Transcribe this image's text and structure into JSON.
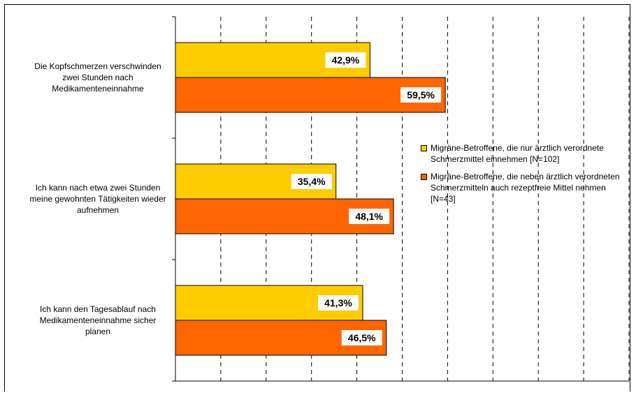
{
  "chart_data": {
    "type": "bar",
    "orientation": "horizontal",
    "categories": [
      "Die Kopfschmerzen verschwinden zwei Stunden nach Medikamenteneinnahme",
      "Ich kann nach etwa zwei Stunden meine gewohnten Tätigkeiten wieder aufnehmen",
      "Ich kann den Tagesablauf nach Medikamenteneinnahme sicher planen"
    ],
    "series": [
      {
        "name": "Migräne-Betroffene, die nur ärztlich verordnete Schmerzmittel einnehmen [N=102]",
        "values": [
          42.9,
          35.4,
          41.3
        ],
        "labels": [
          "42,9%",
          "35,4%",
          "41,3%"
        ],
        "color": "#FFCC00"
      },
      {
        "name": "Migräne-Betroffene, die neben ärztlich verordneten Schmerzmitteln auch rezeptfreie Mittel nehmen [N=43]",
        "values": [
          59.5,
          48.1,
          46.5
        ],
        "labels": [
          "59,5%",
          "48,1%",
          "46,5%"
        ],
        "color": "#FF6600"
      }
    ],
    "xlim": [
      0,
      100
    ],
    "grid": "vertical dashed",
    "legend_position": "right"
  }
}
